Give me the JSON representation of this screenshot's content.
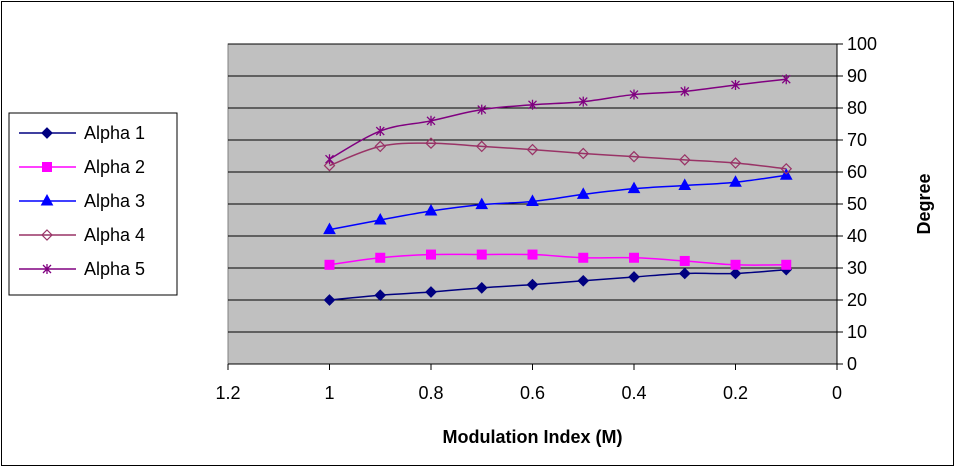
{
  "chart_data": {
    "type": "line",
    "title": "",
    "xlabel": "Modulation Index (M)",
    "ylabel": "Degree",
    "xlim": [
      1.2,
      0
    ],
    "ylim": [
      0,
      100
    ],
    "x_ticks": [
      "1.2",
      "1",
      "0.8",
      "0.6",
      "0.4",
      "0.2",
      "0"
    ],
    "x_tick_values": [
      1.2,
      1.0,
      0.8,
      0.6,
      0.4,
      0.2,
      0.0
    ],
    "y_ticks": [
      "0",
      "10",
      "20",
      "30",
      "40",
      "50",
      "60",
      "70",
      "80",
      "90",
      "100"
    ],
    "y_tick_values": [
      0,
      10,
      20,
      30,
      40,
      50,
      60,
      70,
      80,
      90,
      100
    ],
    "grid": true,
    "legend_position": "left",
    "plot_background": "#c0c0c0",
    "x": [
      1.0,
      0.9,
      0.8,
      0.7,
      0.6,
      0.5,
      0.4,
      0.3,
      0.2,
      0.1
    ],
    "series": [
      {
        "name": "Alpha 1",
        "color": "#000080",
        "marker": "diamond-filled",
        "values": [
          20,
          21.5,
          22.5,
          23.8,
          24.8,
          26,
          27.2,
          28.3,
          28.3,
          29.5
        ]
      },
      {
        "name": "Alpha 2",
        "color": "#ff00ff",
        "marker": "square-filled",
        "values": [
          31,
          33.2,
          34.2,
          34.2,
          34.2,
          33.2,
          33.2,
          32.2,
          31,
          31
        ]
      },
      {
        "name": "Alpha 3",
        "color": "#0000ff",
        "marker": "triangle-filled",
        "values": [
          42,
          45,
          47.8,
          49.8,
          50.8,
          53,
          54.8,
          55.8,
          56.8,
          59
        ]
      },
      {
        "name": "Alpha 4",
        "color": "#993366",
        "marker": "diamond-open",
        "values": [
          62,
          68,
          69,
          68,
          67,
          65.8,
          64.8,
          63.8,
          62.8,
          61
        ]
      },
      {
        "name": "Alpha 5",
        "color": "#800080",
        "marker": "star",
        "values": [
          64,
          72.8,
          76,
          79.5,
          81,
          82,
          84.2,
          85.2,
          87.2,
          89
        ]
      }
    ]
  }
}
